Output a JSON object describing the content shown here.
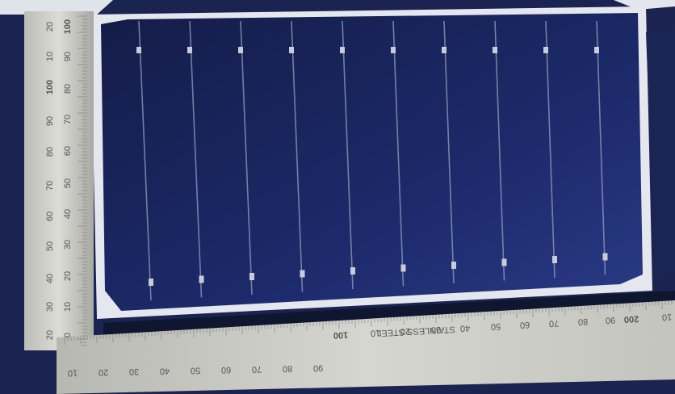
{
  "left_ruler": {
    "outer_labels": [
      "20",
      "30",
      "40",
      "50",
      "60",
      "70",
      "80",
      "90",
      "100",
      "10",
      "20"
    ],
    "inner_labels": [
      "0",
      "10",
      "20",
      "30",
      "40",
      "50",
      "60",
      "70",
      "80",
      "90",
      "100"
    ]
  },
  "bottom_ruler": {
    "lower_labels": [
      "10",
      "20",
      "30",
      "40",
      "50",
      "60",
      "70",
      "80",
      "90"
    ],
    "upper_labels": [
      "100",
      "10",
      "20",
      "30",
      "40",
      "50",
      "60",
      "70",
      "80",
      "90",
      "200",
      "10"
    ],
    "brand": "STAINLESS STEEL"
  }
}
